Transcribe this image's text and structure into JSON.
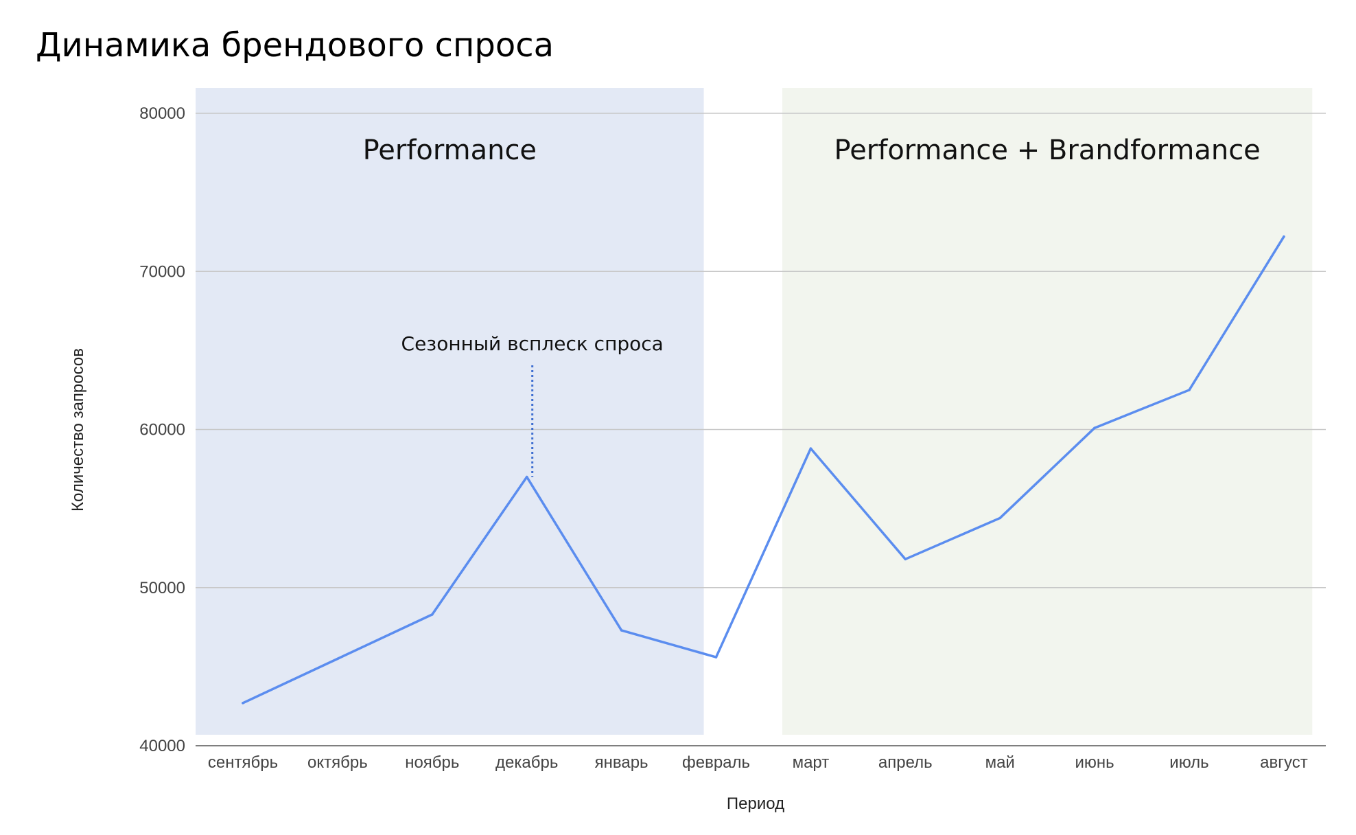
{
  "page": {
    "title": "Динамика брендового спроса"
  },
  "chart_data": {
    "type": "line",
    "title": "Динамика брендового спроса",
    "xlabel": "Период",
    "ylabel": "Количество запросов",
    "categories": [
      "сентябрь",
      "октябрь",
      "ноябрь",
      "декабрь",
      "январь",
      "февраль",
      "март",
      "апрель",
      "май",
      "июнь",
      "июль",
      "август"
    ],
    "series": [
      {
        "values": [
          42700,
          45500,
          48300,
          57000,
          47300,
          45600,
          58800,
          51800,
          54400,
          60100,
          62500,
          72200
        ]
      }
    ],
    "ylim": [
      40000,
      80000
    ],
    "yticks": [
      40000,
      50000,
      60000,
      70000,
      80000
    ],
    "grid": true,
    "line_color": "#5b8def",
    "regions": [
      {
        "label": "Performance",
        "from": "сентябрь",
        "to": "февраль",
        "color": "#e3e9f5"
      },
      {
        "label": "Performance + Brandformance",
        "from": "март",
        "to": "август",
        "color": "#f2f5ee"
      }
    ],
    "annotations": [
      {
        "text": "Сезонный всплеск спроса",
        "category": "декабрь"
      }
    ]
  }
}
